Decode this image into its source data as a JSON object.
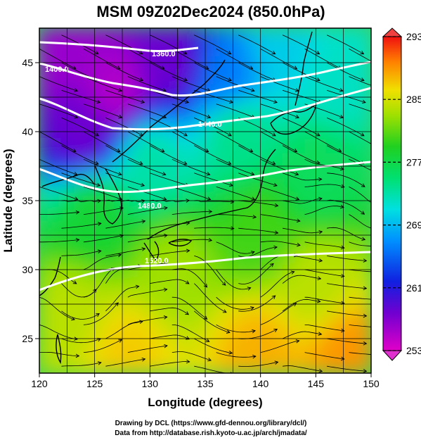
{
  "chart_data": {
    "type": "heatmap",
    "title": "MSM 09Z02Dec2024 (850.0hPa)",
    "xlabel": "Longitude (degrees)",
    "ylabel": "Latitude  (degrees)",
    "xlim": [
      120,
      150
    ],
    "ylim": [
      22.5,
      47.5
    ],
    "x_ticks": [
      120,
      125,
      130,
      135,
      140,
      145,
      150
    ],
    "y_ticks": [
      25,
      30,
      35,
      40,
      45
    ],
    "grid": true,
    "colorbar": {
      "min": 253,
      "max": 293,
      "ticks": [
        253,
        261,
        269,
        277,
        285,
        293
      ],
      "colormap": "rainbow (magenta-blue-cyan-green-yellow-red)"
    },
    "contour_labels": [
      "1360.0",
      "1400.0",
      "1440.0",
      "1480.0",
      "1520.0"
    ],
    "field_samples": [
      {
        "lon": 122,
        "lat": 46,
        "value": 256
      },
      {
        "lon": 127,
        "lat": 43,
        "value": 255
      },
      {
        "lon": 124,
        "lat": 40,
        "value": 258
      },
      {
        "lon": 132,
        "lat": 45,
        "value": 258
      },
      {
        "lon": 137,
        "lat": 44,
        "value": 266
      },
      {
        "lon": 142,
        "lat": 46,
        "value": 270
      },
      {
        "lon": 147,
        "lat": 44,
        "value": 272
      },
      {
        "lon": 138,
        "lat": 40,
        "value": 274
      },
      {
        "lon": 130,
        "lat": 38,
        "value": 273
      },
      {
        "lon": 145,
        "lat": 37,
        "value": 276
      },
      {
        "lon": 125,
        "lat": 34,
        "value": 278
      },
      {
        "lon": 140,
        "lat": 33,
        "value": 280
      },
      {
        "lon": 132,
        "lat": 30,
        "value": 283
      },
      {
        "lon": 123,
        "lat": 27,
        "value": 284
      },
      {
        "lon": 145,
        "lat": 29,
        "value": 284
      },
      {
        "lon": 128,
        "lat": 24,
        "value": 287
      },
      {
        "lon": 140,
        "lat": 24,
        "value": 288
      },
      {
        "lon": 148,
        "lat": 24,
        "value": 289
      }
    ]
  },
  "credits": {
    "line1": "Drawing by DCL (https://www.gfd-dennou.org/library/dcl/)",
    "line2": "Data from http://database.rish.kyoto-u.ac.jp/arch/jmadata/"
  },
  "colors": {
    "contour": "#ffffff",
    "streamline": "#000000",
    "coast": "#000000"
  }
}
